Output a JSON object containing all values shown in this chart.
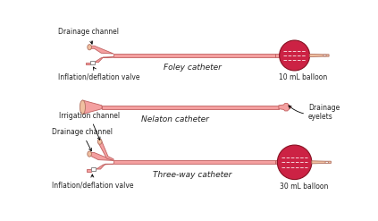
{
  "bg_color": "#ffffff",
  "catheter_fill": "#f4a0a0",
  "catheter_edge": "#c06060",
  "catheter_light": "#f8c0b0",
  "balloon_fill": "#cc2244",
  "balloon_edge": "#881122",
  "tip_fill": "#f0c0a0",
  "tip_edge": "#b07060",
  "valve_fill": "#ffffff",
  "valve_edge": "#888888",
  "text_color": "#222222",
  "label_fontsize": 5.5,
  "title_fontsize": 6.5,
  "foley_label": "Foley catheter",
  "nelaton_label": "Nelaton catheter",
  "threeway_label": "Three-way catheter",
  "balloon10_label": "10 mL balloon",
  "balloon30_label": "30 mL balloon",
  "drainage_label": "Drainage channel",
  "inflation_label": "Inflation/deflation valve",
  "irrigation_label": "Irrigation channel",
  "drainage_eyelets_label": "Drainage\neyelets"
}
